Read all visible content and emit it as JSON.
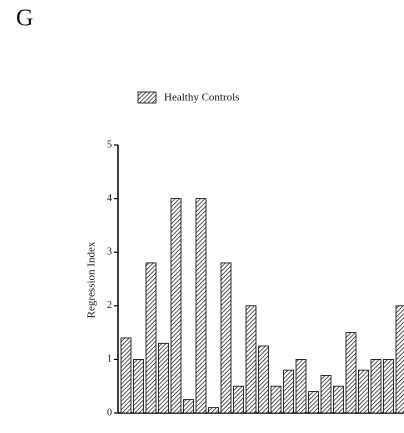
{
  "chart_data": {
    "type": "bar",
    "panel_label": "G",
    "ylabel": "Regression Index",
    "series": [
      {
        "name": "Healthy Controls",
        "color": "#000000",
        "values": [
          1.4,
          1,
          2.8,
          1.3,
          4,
          0.25,
          4,
          0.1,
          2.8,
          0.5,
          2,
          1.25,
          0.5,
          0.8,
          1,
          0.4,
          0.7,
          0.5,
          1.5,
          0.8,
          1,
          1,
          2
        ]
      }
    ],
    "ylim": [
      0,
      5
    ],
    "yticks": [
      0,
      1,
      2,
      3,
      4,
      5
    ]
  }
}
